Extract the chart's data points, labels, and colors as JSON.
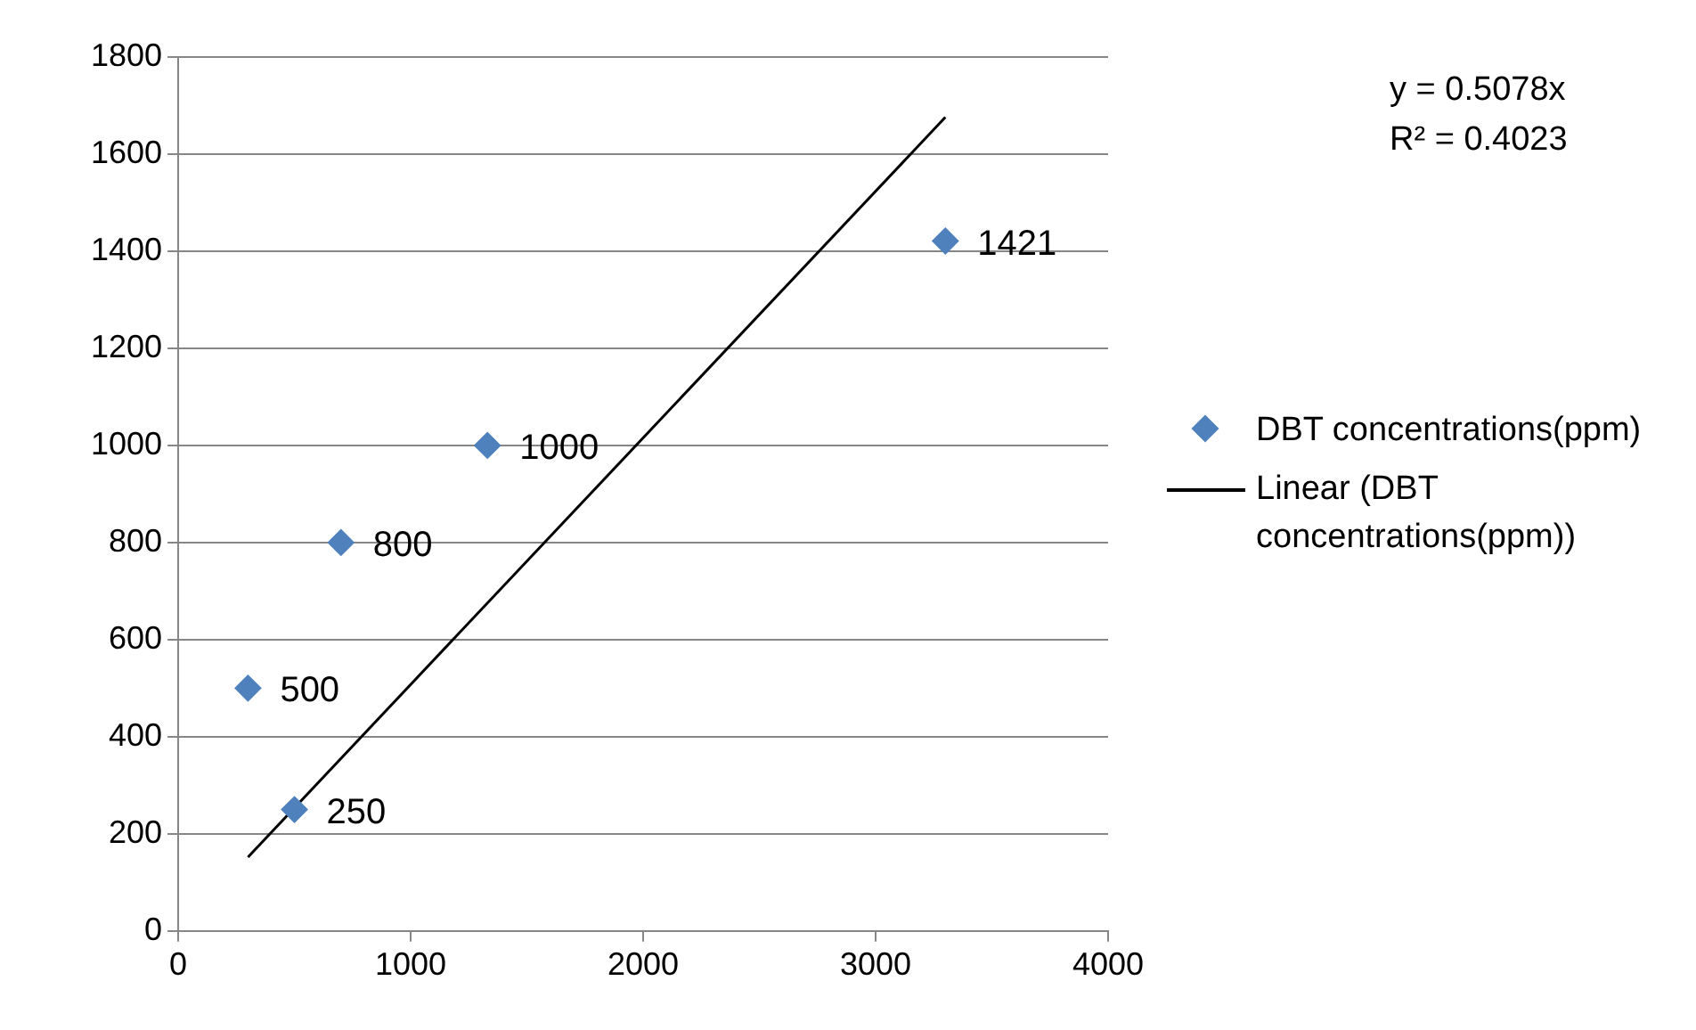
{
  "chart_data": {
    "type": "scatter",
    "annotations": [
      "y = 0.5078x",
      "R² = 0.4023"
    ],
    "xlim": [
      0,
      4000
    ],
    "xticks": [
      0,
      1000,
      2000,
      3000,
      4000
    ],
    "ylim": [
      0,
      1800
    ],
    "yticks": [
      0,
      200,
      400,
      600,
      800,
      1000,
      1200,
      1400,
      1600,
      1800
    ],
    "grid": "y",
    "legend": "right",
    "series": [
      {
        "type": "scatter",
        "name": "DBT concentrations(ppm)",
        "color": "#4f81bd",
        "marker": "diamond",
        "x": [
          300,
          500,
          700,
          1330,
          3300
        ],
        "values": [
          500,
          250,
          800,
          1000,
          1421
        ],
        "value_labels": [
          "500",
          "250",
          "800",
          "1000",
          "1421"
        ]
      },
      {
        "type": "line",
        "name": "Linear (DBT concentrations(ppm))",
        "color": "#000000",
        "marker": "none",
        "x": [
          300,
          3300
        ],
        "values": [
          152,
          1676
        ]
      }
    ]
  }
}
